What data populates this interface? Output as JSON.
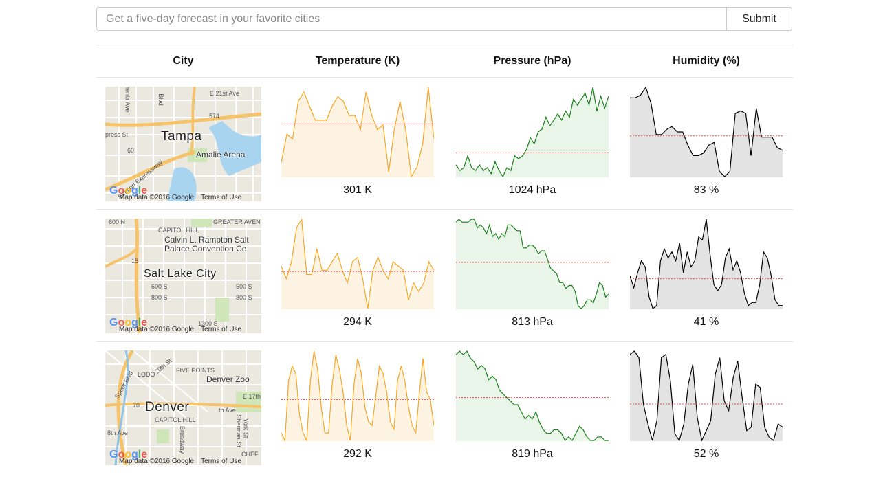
{
  "search": {
    "placeholder": "Get a five-day forecast in your favorite cities",
    "value": "",
    "submit_label": "Submit"
  },
  "table": {
    "headers": [
      "City",
      "Temperature (K)",
      "Pressure (hPa)",
      "Humidity (%)"
    ]
  },
  "colors": {
    "temperature_line": "#f5a623",
    "temperature_fill": "#fdf3e2",
    "pressure_line": "#1a7f1a",
    "pressure_fill": "#e8f5e8",
    "humidity_line": "#000000",
    "humidity_fill": "#e3e3e3",
    "mean_line": "#ef4444"
  },
  "map_attribution": "Map data ©2016 Google",
  "map_terms": "Terms of Use",
  "cities": [
    {
      "name": "Tampa",
      "map_labels": [
        "E 21st Ave",
        "574",
        "Amalie Arena",
        "60",
        "press St",
        "Selmon Expressway",
        "Blvd",
        "rmenia Ave"
      ],
      "temperature": {
        "label": "301 K",
        "values": [
          4,
          10,
          9,
          17,
          19,
          16,
          13,
          13,
          13,
          16,
          18,
          17,
          14,
          14,
          11,
          19,
          14,
          11,
          12,
          2,
          11,
          17,
          11,
          1,
          3,
          8,
          20,
          9
        ],
        "mean": 12.2
      },
      "pressure": {
        "label": "1024 hPa",
        "values": [
          4,
          2,
          3,
          7,
          3,
          2,
          4,
          2,
          3,
          1,
          5,
          2,
          0,
          3,
          2,
          7,
          6,
          7,
          9,
          13,
          11,
          15,
          16,
          20,
          17,
          19,
          21,
          19,
          22,
          20,
          26,
          24,
          26,
          28,
          24,
          30,
          22,
          27,
          23,
          27
        ],
        "mean": 8.0
      },
      "humidity": {
        "label": "83 %",
        "values": [
          32,
          32,
          33,
          36,
          30,
          18,
          18,
          20,
          21,
          19,
          19,
          14,
          10,
          10,
          11,
          14,
          15,
          4,
          2,
          4,
          26,
          27,
          26,
          10,
          28,
          17,
          17,
          17,
          13,
          12
        ],
        "mean": 17.5
      }
    },
    {
      "name": "Salt Lake City",
      "map_labels": [
        "CAPITOL HILL",
        "GREATER AVENUES",
        "Calvin L. Rampton Salt Palace Convention Ce",
        "15",
        "600 S",
        "800 S",
        "500 S",
        "800 S",
        "1300 S",
        "600 N"
      ],
      "temperature": {
        "label": "294 K",
        "values": [
          11,
          8,
          12,
          20,
          22,
          9,
          9,
          15,
          10,
          10,
          12,
          14,
          10,
          7,
          12,
          13,
          8,
          1,
          10,
          13,
          10,
          8,
          12,
          11,
          10,
          3,
          7,
          5,
          7,
          12,
          10
        ],
        "mean": 9.7
      },
      "pressure": {
        "label": "813 hPa",
        "values": [
          30,
          31,
          30,
          30,
          30,
          31,
          31,
          28,
          29,
          28,
          26,
          29,
          25,
          26,
          24,
          26,
          25,
          29,
          29,
          28,
          27,
          27,
          21,
          21,
          22,
          22,
          21,
          19,
          20,
          20,
          17,
          14,
          13,
          12,
          9,
          9,
          7,
          8,
          8,
          6,
          1,
          0,
          1,
          3,
          3,
          2,
          5,
          9,
          8,
          4,
          5
        ],
        "mean": 16.0
      },
      "humidity": {
        "label": "41 %",
        "values": [
          11,
          7,
          12,
          16,
          14,
          4,
          0,
          1,
          16,
          20,
          17,
          19,
          16,
          22,
          12,
          19,
          14,
          16,
          24,
          23,
          30,
          18,
          8,
          6,
          8,
          17,
          20,
          13,
          16,
          12,
          5,
          1,
          2,
          2,
          8,
          19,
          17,
          11,
          3,
          1,
          1
        ],
        "mean": 10.0
      }
    },
    {
      "name": "Denver",
      "map_labels": [
        "LODO",
        "FIVE POINTS",
        "Denver Zoo",
        "70",
        "CAPITOL HILL",
        "E 17th",
        "th Ave",
        "Broadway",
        "Sherman St",
        "York St",
        "CHEF",
        "8th Ave",
        "20th St",
        "Speer Blvd"
      ],
      "temperature": {
        "label": "292 K",
        "values": [
          3,
          1,
          17,
          21,
          19,
          8,
          3,
          1,
          17,
          25,
          20,
          10,
          3,
          3,
          16,
          24,
          20,
          14,
          5,
          1,
          16,
          23,
          19,
          10,
          6,
          5,
          13,
          21,
          19,
          14,
          6,
          4,
          17,
          21,
          17,
          10,
          5,
          3,
          14,
          23,
          14,
          12,
          5
        ],
        "mean": 12.0
      },
      "pressure": {
        "label": "819 hPa",
        "values": [
          24,
          25,
          24,
          25,
          23,
          22,
          20,
          21,
          20,
          17,
          18,
          17,
          14,
          13,
          12,
          11,
          10,
          10,
          8,
          6,
          7,
          6,
          8,
          5,
          3,
          2,
          2,
          3,
          3,
          2,
          0,
          1,
          0,
          2,
          4,
          3,
          1,
          0,
          0,
          1,
          1,
          0,
          0
        ],
        "mean": 12.0
      },
      "humidity": {
        "label": "52 %",
        "values": [
          28,
          29,
          27,
          13,
          7,
          2,
          8,
          27,
          28,
          20,
          4,
          2,
          7,
          19,
          25,
          9,
          2,
          5,
          8,
          22,
          27,
          14,
          11,
          21,
          26,
          15,
          5,
          6,
          19,
          18,
          6,
          3,
          2,
          7,
          6
        ],
        "mean": 13.0
      }
    }
  ]
}
